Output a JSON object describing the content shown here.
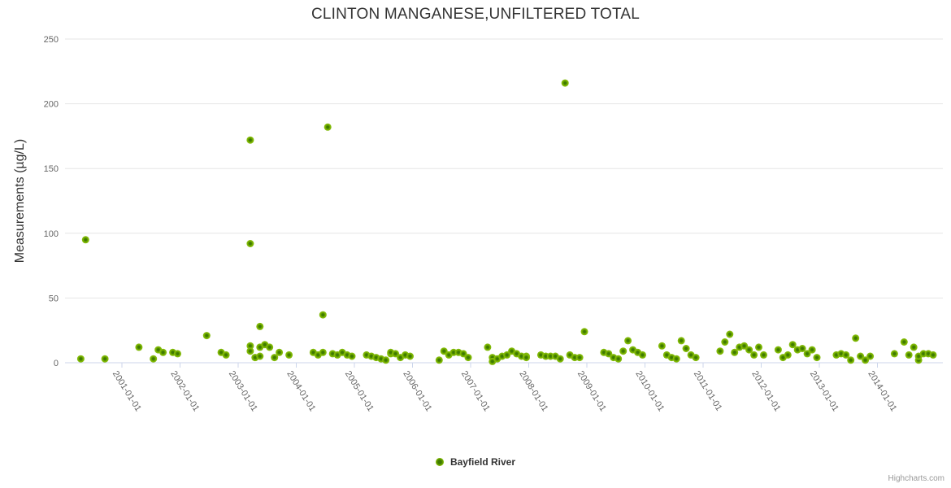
{
  "header": {
    "title": "CLINTON MANGANESE,UNFILTERED TOTAL"
  },
  "legend": {
    "items": [
      {
        "label": "Bayfield River",
        "marker_color": "#7db500"
      }
    ]
  },
  "credits": {
    "label": "Highcharts.com"
  },
  "colors": {
    "background": "#ffffff",
    "point_outer": "#7db500",
    "point_edge": "#85bd12",
    "point_inner": "#3e7a00",
    "gridline": "#e6e6e6",
    "axis_line": "#ccd6eb",
    "tick_label": "#666666",
    "title_text": "#333333",
    "credits_text": "#999999"
  },
  "chart_data": {
    "type": "scatter",
    "title": "CLINTON MANGANESE,UNFILTERED TOTAL",
    "xlabel": "",
    "ylabel": "Measurements (µg/L)",
    "ylim": [
      0,
      250
    ],
    "yticks": [
      0,
      50,
      100,
      150,
      200,
      250
    ],
    "xticks": [
      "2001-01-01",
      "2002-01-01",
      "2003-01-01",
      "2004-01-01",
      "2005-01-01",
      "2006-01-01",
      "2007-01-01",
      "2008-01-01",
      "2009-01-01",
      "2010-01-01",
      "2011-01-01",
      "2012-01-01",
      "2013-01-01",
      "2014-01-01"
    ],
    "grid": "horizontal-only",
    "legend_position": "bottom-center",
    "series": [
      {
        "name": "Bayfield River",
        "marker_color": "#7db500",
        "points": [
          [
            "2000-04",
            3
          ],
          [
            "2000-05",
            95
          ],
          [
            "2000-09",
            3
          ],
          [
            "2001-04",
            12
          ],
          [
            "2001-07",
            3
          ],
          [
            "2001-08",
            10
          ],
          [
            "2001-09",
            8
          ],
          [
            "2001-11",
            8
          ],
          [
            "2001-12",
            7
          ],
          [
            "2002-06",
            21
          ],
          [
            "2002-09",
            8
          ],
          [
            "2002-10",
            6
          ],
          [
            "2003-03",
            92
          ],
          [
            "2003-03",
            172
          ],
          [
            "2003-03",
            13
          ],
          [
            "2003-03",
            9
          ],
          [
            "2003-04",
            4
          ],
          [
            "2003-04",
            4
          ],
          [
            "2003-05",
            28
          ],
          [
            "2003-05",
            12
          ],
          [
            "2003-05",
            5
          ],
          [
            "2003-06",
            14
          ],
          [
            "2003-07",
            12
          ],
          [
            "2003-08",
            4
          ],
          [
            "2003-09",
            8
          ],
          [
            "2003-11",
            6
          ],
          [
            "2004-04",
            8
          ],
          [
            "2004-05",
            6
          ],
          [
            "2004-06",
            8
          ],
          [
            "2004-06",
            37
          ],
          [
            "2004-07",
            182
          ],
          [
            "2004-08",
            7
          ],
          [
            "2004-09",
            6
          ],
          [
            "2004-10",
            8
          ],
          [
            "2004-11",
            6
          ],
          [
            "2004-12",
            5
          ],
          [
            "2005-03",
            6
          ],
          [
            "2005-04",
            5
          ],
          [
            "2005-05",
            4
          ],
          [
            "2005-06",
            3
          ],
          [
            "2005-07",
            2
          ],
          [
            "2005-08",
            7
          ],
          [
            "2005-08",
            8
          ],
          [
            "2005-09",
            7
          ],
          [
            "2005-10",
            4
          ],
          [
            "2005-11",
            6
          ],
          [
            "2005-12",
            5
          ],
          [
            "2006-06",
            2
          ],
          [
            "2006-07",
            9
          ],
          [
            "2006-08",
            6
          ],
          [
            "2006-09",
            8
          ],
          [
            "2006-10",
            8
          ],
          [
            "2006-11",
            7
          ],
          [
            "2006-12",
            4
          ],
          [
            "2007-04",
            12
          ],
          [
            "2007-05",
            4
          ],
          [
            "2007-05",
            1
          ],
          [
            "2007-06",
            3
          ],
          [
            "2007-07",
            5
          ],
          [
            "2007-08",
            6
          ],
          [
            "2007-09",
            9
          ],
          [
            "2007-10",
            7
          ],
          [
            "2007-11",
            5
          ],
          [
            "2007-12",
            5
          ],
          [
            "2007-12",
            4
          ],
          [
            "2008-03",
            6
          ],
          [
            "2008-04",
            5
          ],
          [
            "2008-05",
            5
          ],
          [
            "2008-06",
            5
          ],
          [
            "2008-07",
            3
          ],
          [
            "2008-08",
            216
          ],
          [
            "2008-09",
            6
          ],
          [
            "2008-10",
            4
          ],
          [
            "2008-11",
            4
          ],
          [
            "2008-12",
            24
          ],
          [
            "2009-04",
            8
          ],
          [
            "2009-05",
            7
          ],
          [
            "2009-06",
            4
          ],
          [
            "2009-07",
            3
          ],
          [
            "2009-08",
            9
          ],
          [
            "2009-09",
            17
          ],
          [
            "2009-10",
            10
          ],
          [
            "2009-11",
            8
          ],
          [
            "2009-12",
            6
          ],
          [
            "2010-04",
            13
          ],
          [
            "2010-05",
            6
          ],
          [
            "2010-06",
            4
          ],
          [
            "2010-07",
            3
          ],
          [
            "2010-08",
            17
          ],
          [
            "2010-09",
            11
          ],
          [
            "2010-10",
            6
          ],
          [
            "2010-11",
            4
          ],
          [
            "2011-04",
            9
          ],
          [
            "2011-05",
            16
          ],
          [
            "2011-06",
            22
          ],
          [
            "2011-07",
            8
          ],
          [
            "2011-08",
            12
          ],
          [
            "2011-09",
            13
          ],
          [
            "2011-10",
            10
          ],
          [
            "2011-11",
            6
          ],
          [
            "2011-12",
            12
          ],
          [
            "2012-01",
            6
          ],
          [
            "2012-04",
            10
          ],
          [
            "2012-05",
            4
          ],
          [
            "2012-06",
            6
          ],
          [
            "2012-07",
            14
          ],
          [
            "2012-08",
            10
          ],
          [
            "2012-09",
            11
          ],
          [
            "2012-10",
            7
          ],
          [
            "2012-11",
            10
          ],
          [
            "2012-12",
            4
          ],
          [
            "2013-04",
            6
          ],
          [
            "2013-05",
            7
          ],
          [
            "2013-06",
            6
          ],
          [
            "2013-07",
            2
          ],
          [
            "2013-08",
            19
          ],
          [
            "2013-09",
            5
          ],
          [
            "2013-10",
            2
          ],
          [
            "2013-11",
            5
          ],
          [
            "2014-04",
            7
          ],
          [
            "2014-06",
            16
          ],
          [
            "2014-07",
            6
          ],
          [
            "2014-08",
            12
          ],
          [
            "2014-09",
            2
          ],
          [
            "2014-09",
            5
          ],
          [
            "2014-10",
            7
          ],
          [
            "2014-11",
            7
          ],
          [
            "2014-12",
            6
          ]
        ]
      }
    ]
  }
}
